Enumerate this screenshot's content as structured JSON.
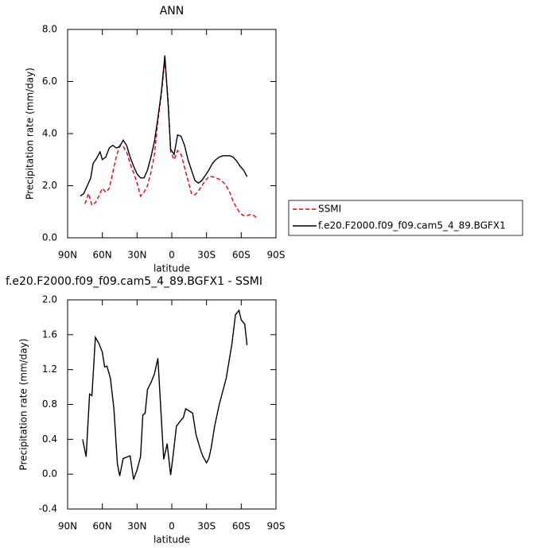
{
  "chart_data": [
    {
      "type": "line",
      "title": "ANN",
      "xlabel": "latitude",
      "ylabel": "Precipitation rate (mm/day)",
      "xlim": [
        90,
        -90
      ],
      "xticks": [
        {
          "value": 90,
          "label": "90N"
        },
        {
          "value": 60,
          "label": "60N"
        },
        {
          "value": 30,
          "label": "30N"
        },
        0,
        {
          "value": -30,
          "label": "30S"
        },
        {
          "value": -60,
          "label": "60S"
        },
        {
          "value": -90,
          "label": "90S"
        }
      ],
      "ylim": [
        0,
        8
      ],
      "yticks": [
        {
          "value": 0,
          "label": "0.0"
        },
        {
          "value": 2,
          "label": "2.0"
        },
        {
          "value": 4,
          "label": "4.0"
        },
        {
          "value": 6,
          "label": "6.0"
        },
        {
          "value": 8,
          "label": "8.0"
        }
      ],
      "legend": "right",
      "series": [
        {
          "name": "SSMI",
          "color": "#e8000b",
          "style": "dashed",
          "x": [
            75,
            72,
            69,
            66,
            63,
            60,
            57,
            54,
            51,
            48,
            45,
            42,
            39,
            36,
            33,
            30,
            27,
            24,
            21,
            18,
            15,
            12,
            9,
            6,
            3,
            1,
            -2,
            -5,
            -8,
            -11,
            -14,
            -17,
            -20,
            -23,
            -26,
            -29,
            -32,
            -35,
            -38,
            -41,
            -44,
            -47,
            -50,
            -53,
            -56,
            -59,
            -62,
            -65,
            -68,
            -71,
            -74
          ],
          "values": [
            1.3,
            1.7,
            1.25,
            1.35,
            1.6,
            1.9,
            1.75,
            1.9,
            2.5,
            3.1,
            3.55,
            3.5,
            3.3,
            2.85,
            2.5,
            2.1,
            1.6,
            1.75,
            2.0,
            2.5,
            3.2,
            4.5,
            5.5,
            6.8,
            5.2,
            3.3,
            3.0,
            3.35,
            3.2,
            2.7,
            2.2,
            1.7,
            1.65,
            1.8,
            2.0,
            2.2,
            2.35,
            2.35,
            2.3,
            2.25,
            2.15,
            2.0,
            1.75,
            1.4,
            1.15,
            0.95,
            0.85,
            0.85,
            0.9,
            0.85,
            0.75
          ]
        },
        {
          "name": "f.e20.F2000.f09_f09.cam5_4_89.BGFX1",
          "color": "#000000",
          "style": "solid",
          "x": [
            79,
            76,
            73,
            70,
            68,
            65,
            62,
            60,
            57,
            54,
            51,
            48,
            45,
            42,
            39,
            36,
            33,
            30,
            27,
            24,
            21,
            18,
            15,
            12,
            9,
            6,
            3,
            1,
            -2,
            -5,
            -8,
            -11,
            -14,
            -17,
            -20,
            -23,
            -26,
            -29,
            -32,
            -35,
            -38,
            -41,
            -44,
            -47,
            -50,
            -53,
            -56,
            -59,
            -62,
            -65
          ],
          "values": [
            1.6,
            1.7,
            2.0,
            2.3,
            2.85,
            3.05,
            3.3,
            3.0,
            3.1,
            3.45,
            3.55,
            3.45,
            3.5,
            3.75,
            3.55,
            3.1,
            2.75,
            2.45,
            2.3,
            2.3,
            2.6,
            3.1,
            3.7,
            4.6,
            5.6,
            7.0,
            5.0,
            3.4,
            3.2,
            3.95,
            3.9,
            3.55,
            3.0,
            2.6,
            2.2,
            2.1,
            2.2,
            2.4,
            2.6,
            2.85,
            3.0,
            3.1,
            3.15,
            3.15,
            3.15,
            3.1,
            2.95,
            2.75,
            2.6,
            2.35
          ]
        }
      ]
    },
    {
      "type": "line",
      "title": "f.e20.F2000.f09_f09.cam5_4_89.BGFX1 - SSMI",
      "xlabel": "latitude",
      "ylabel": "Precipitation rate (mm/day)",
      "xlim": [
        90,
        -90
      ],
      "xticks": [
        {
          "value": 90,
          "label": "90N"
        },
        {
          "value": 60,
          "label": "60N"
        },
        {
          "value": 30,
          "label": "30N"
        },
        0,
        {
          "value": -30,
          "label": "30S"
        },
        {
          "value": -60,
          "label": "60S"
        },
        {
          "value": -90,
          "label": "90S"
        }
      ],
      "ylim": [
        -0.4,
        2
      ],
      "yticks": [
        -0.4,
        {
          "value": 0,
          "label": "0.0"
        },
        0.4,
        0.8,
        1.2,
        1.6,
        {
          "value": 2,
          "label": "2.0"
        }
      ],
      "series": [
        {
          "color": "#000000",
          "style": "solid",
          "x": [
            77,
            74,
            71,
            69,
            66,
            63,
            60,
            58,
            56,
            53,
            50,
            47,
            45,
            42,
            38,
            36,
            33,
            30,
            27,
            25,
            23,
            21,
            18,
            15,
            12,
            7,
            4,
            1,
            -1,
            -4,
            -8,
            -10,
            -12,
            -18,
            -21,
            -25,
            -27,
            -30,
            -32,
            -34,
            -37,
            -41,
            -47,
            -52,
            -55,
            -58,
            -60,
            -63,
            -65
          ],
          "values": [
            0.4,
            0.2,
            0.92,
            0.9,
            1.57,
            1.5,
            1.4,
            1.23,
            1.24,
            1.1,
            0.75,
            0.12,
            -0.02,
            0.18,
            0.2,
            0.21,
            -0.06,
            0.05,
            0.2,
            0.68,
            0.7,
            0.97,
            1.05,
            1.15,
            1.33,
            0.17,
            0.35,
            -0.01,
            0.2,
            0.55,
            0.62,
            0.65,
            0.75,
            0.7,
            0.45,
            0.27,
            0.2,
            0.13,
            0.18,
            0.3,
            0.55,
            0.8,
            1.1,
            1.5,
            1.83,
            1.88,
            1.77,
            1.72,
            1.48
          ]
        }
      ]
    }
  ]
}
